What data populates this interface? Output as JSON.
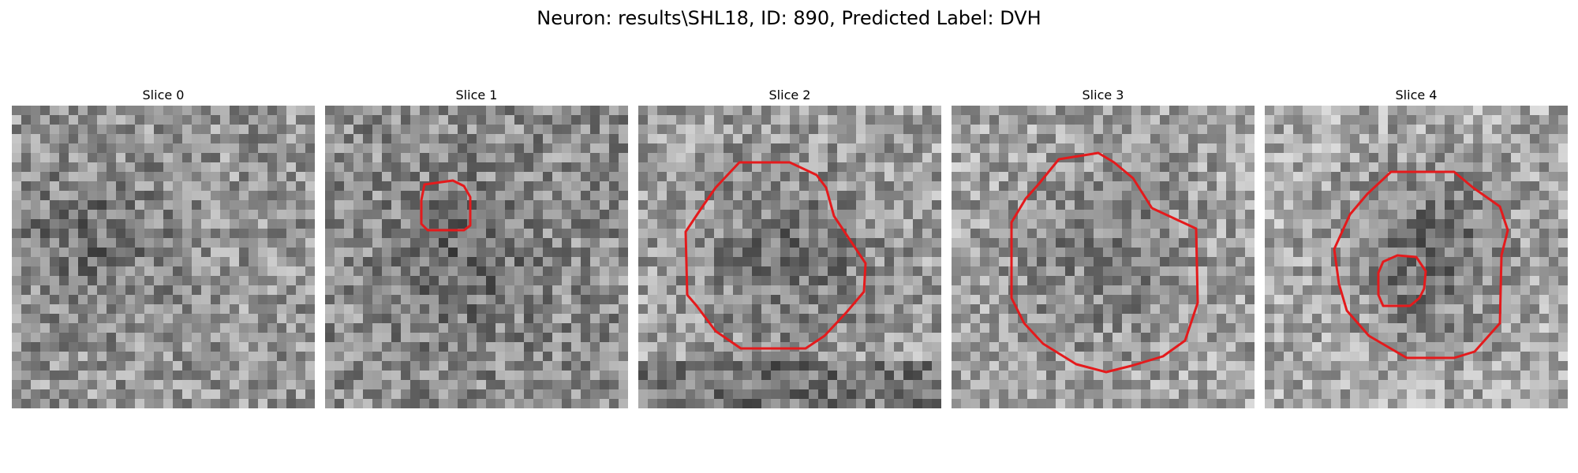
{
  "figure": {
    "title": "Neuron: results\\SHL18, ID: 890, Predicted Label: DVH"
  },
  "panels": [
    {
      "title": "Slice 0",
      "image": "grayscale-noise-patch",
      "roi_outlines": []
    },
    {
      "title": "Slice 1",
      "image": "grayscale-noise-patch",
      "roi_outlines": [
        "red-contour"
      ]
    },
    {
      "title": "Slice 2",
      "image": "grayscale-noise-patch",
      "roi_outlines": [
        "red-contour"
      ]
    },
    {
      "title": "Slice 3",
      "image": "grayscale-noise-patch",
      "roi_outlines": [
        "red-contour"
      ]
    },
    {
      "title": "Slice 4",
      "image": "grayscale-noise-patch",
      "roi_outlines": [
        "red-contour",
        "red-contour"
      ]
    }
  ],
  "colors": {
    "contour": "#e41a1c",
    "background": "#ffffff"
  }
}
